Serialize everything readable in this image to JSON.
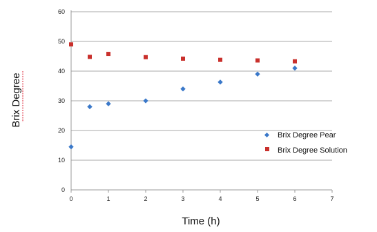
{
  "chart_data": {
    "type": "scatter",
    "title": "",
    "xlabel": "Time (h)",
    "ylabel": "Brix Degree",
    "xlim": [
      0,
      7
    ],
    "ylim": [
      0,
      60
    ],
    "xticks": [
      0,
      1,
      2,
      3,
      4,
      5,
      6,
      7
    ],
    "yticks": [
      0,
      10,
      20,
      30,
      40,
      50,
      60
    ],
    "grid": "horizontal",
    "legend_position": "right",
    "series": [
      {
        "name": "Brix Degree Pear",
        "marker": "diamond",
        "color": "#3a78c9",
        "x": [
          0,
          0.5,
          1,
          2,
          3,
          4,
          5,
          6
        ],
        "y": [
          14.5,
          28,
          29,
          30,
          34,
          36.3,
          39,
          41
        ]
      },
      {
        "name": "Brix Degree Solution",
        "marker": "square",
        "color": "#c9302c",
        "x": [
          0,
          0.5,
          1,
          2,
          3,
          4,
          5,
          6
        ],
        "y": [
          49,
          44.8,
          45.8,
          44.7,
          44.2,
          43.8,
          43.6,
          43.3
        ]
      }
    ]
  }
}
